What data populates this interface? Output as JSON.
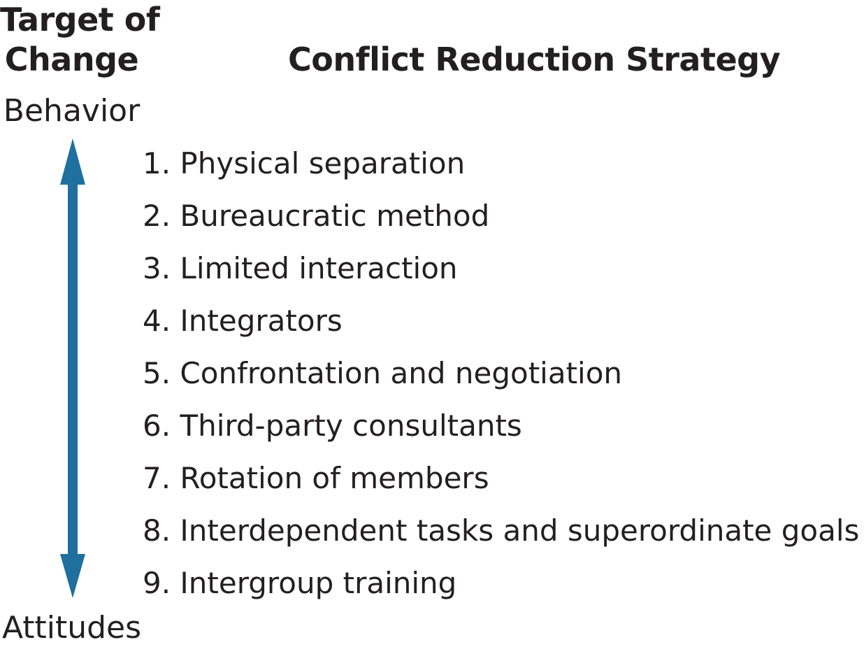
{
  "headings": {
    "target_of_change_line1": "Target of",
    "target_of_change_line2": "Change",
    "strategy": "Conflict Reduction Strategy"
  },
  "scale": {
    "top_label": "Behavior",
    "bottom_label": "Attitudes",
    "arrow_color": "#1f6f9f",
    "arrow_icon": "double-headed-vertical-arrow"
  },
  "strategies": [
    "1. Physical separation",
    "2. Bureaucratic method",
    "3. Limited interaction",
    "4. Integrators",
    "5. Confrontation and negotiation",
    "6. Third-party consultants",
    "7. Rotation of members",
    "8. Interdependent tasks and superordinate goals",
    "9. Intergroup training"
  ]
}
